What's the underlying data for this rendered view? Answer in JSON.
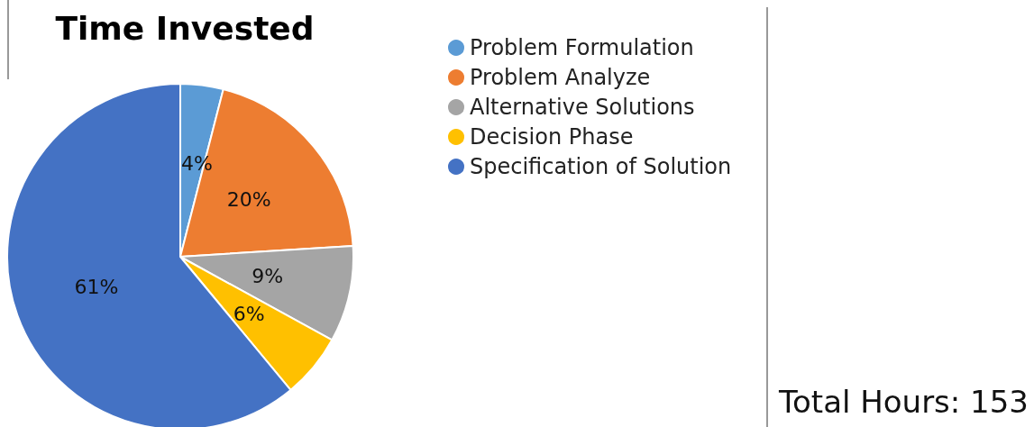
{
  "chart_data": {
    "type": "pie",
    "title": "Time Invested",
    "categories": [
      "Problem Formulation",
      "Problem Analyze",
      "Alternative Solutions",
      "Decision Phase",
      "Specification of Solution"
    ],
    "values": [
      4,
      20,
      9,
      6,
      61
    ],
    "colors": [
      "#5b9bd5",
      "#ed7d31",
      "#a5a5a5",
      "#ffc000",
      "#4472c4"
    ],
    "value_labels": [
      "4%",
      "20%",
      "9%",
      "6%",
      "61%"
    ],
    "legend": "top right",
    "annotations": [
      "Total Hours: 153"
    ]
  }
}
